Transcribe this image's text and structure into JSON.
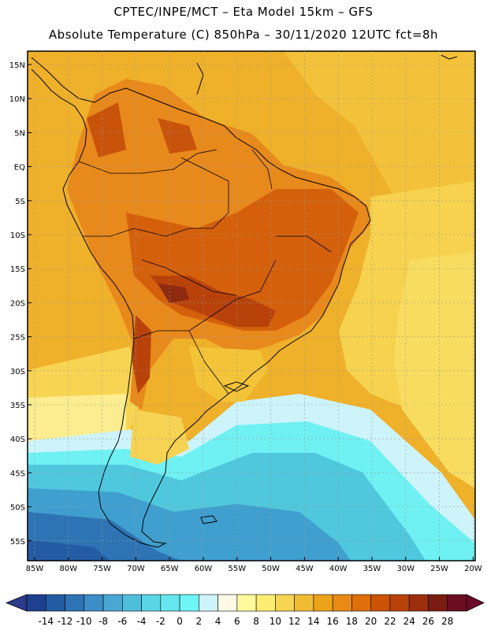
{
  "header": {
    "line1": "CPTEC/INPE/MCT –  Eta Model 15km – GFS",
    "line2": "Absolute Temperature (C) 850hPa – 30/11/2020 12UTC fct=8h"
  },
  "axes": {
    "latitudes": [
      "15N",
      "10N",
      "5N",
      "EQ",
      "5S",
      "10S",
      "15S",
      "20S",
      "25S",
      "30S",
      "35S",
      "40S",
      "45S",
      "50S",
      "55S"
    ],
    "longitudes": [
      "85W",
      "80W",
      "75W",
      "70W",
      "65W",
      "60W",
      "55W",
      "50W",
      "45W",
      "40W",
      "35W",
      "30W",
      "25W",
      "20W"
    ]
  },
  "colorbar": {
    "labels": [
      "-14",
      "-12",
      "-10",
      "-8",
      "-6",
      "-4",
      "-2",
      "0",
      "2",
      "4",
      "6",
      "8",
      "10",
      "12",
      "14",
      "16",
      "18",
      "20",
      "22",
      "24",
      "26",
      "28"
    ],
    "colors": [
      "#1f3f8f",
      "#245ca3",
      "#2e74b5",
      "#3d8ec7",
      "#4aa6d3",
      "#4fbedb",
      "#58d6e6",
      "#66e6ee",
      "#6ff5f5",
      "#cdf4fb",
      "#fffae6",
      "#fffb9c",
      "#fbed72",
      "#f5d552",
      "#f0bc34",
      "#eda319",
      "#e88a16",
      "#df6f0a",
      "#cc5303",
      "#b8420a",
      "#9e2f0e",
      "#7b1c12",
      "#6a0e20"
    ],
    "low_color": "#2b3b8c",
    "high_color": "#6b0a2a"
  }
}
